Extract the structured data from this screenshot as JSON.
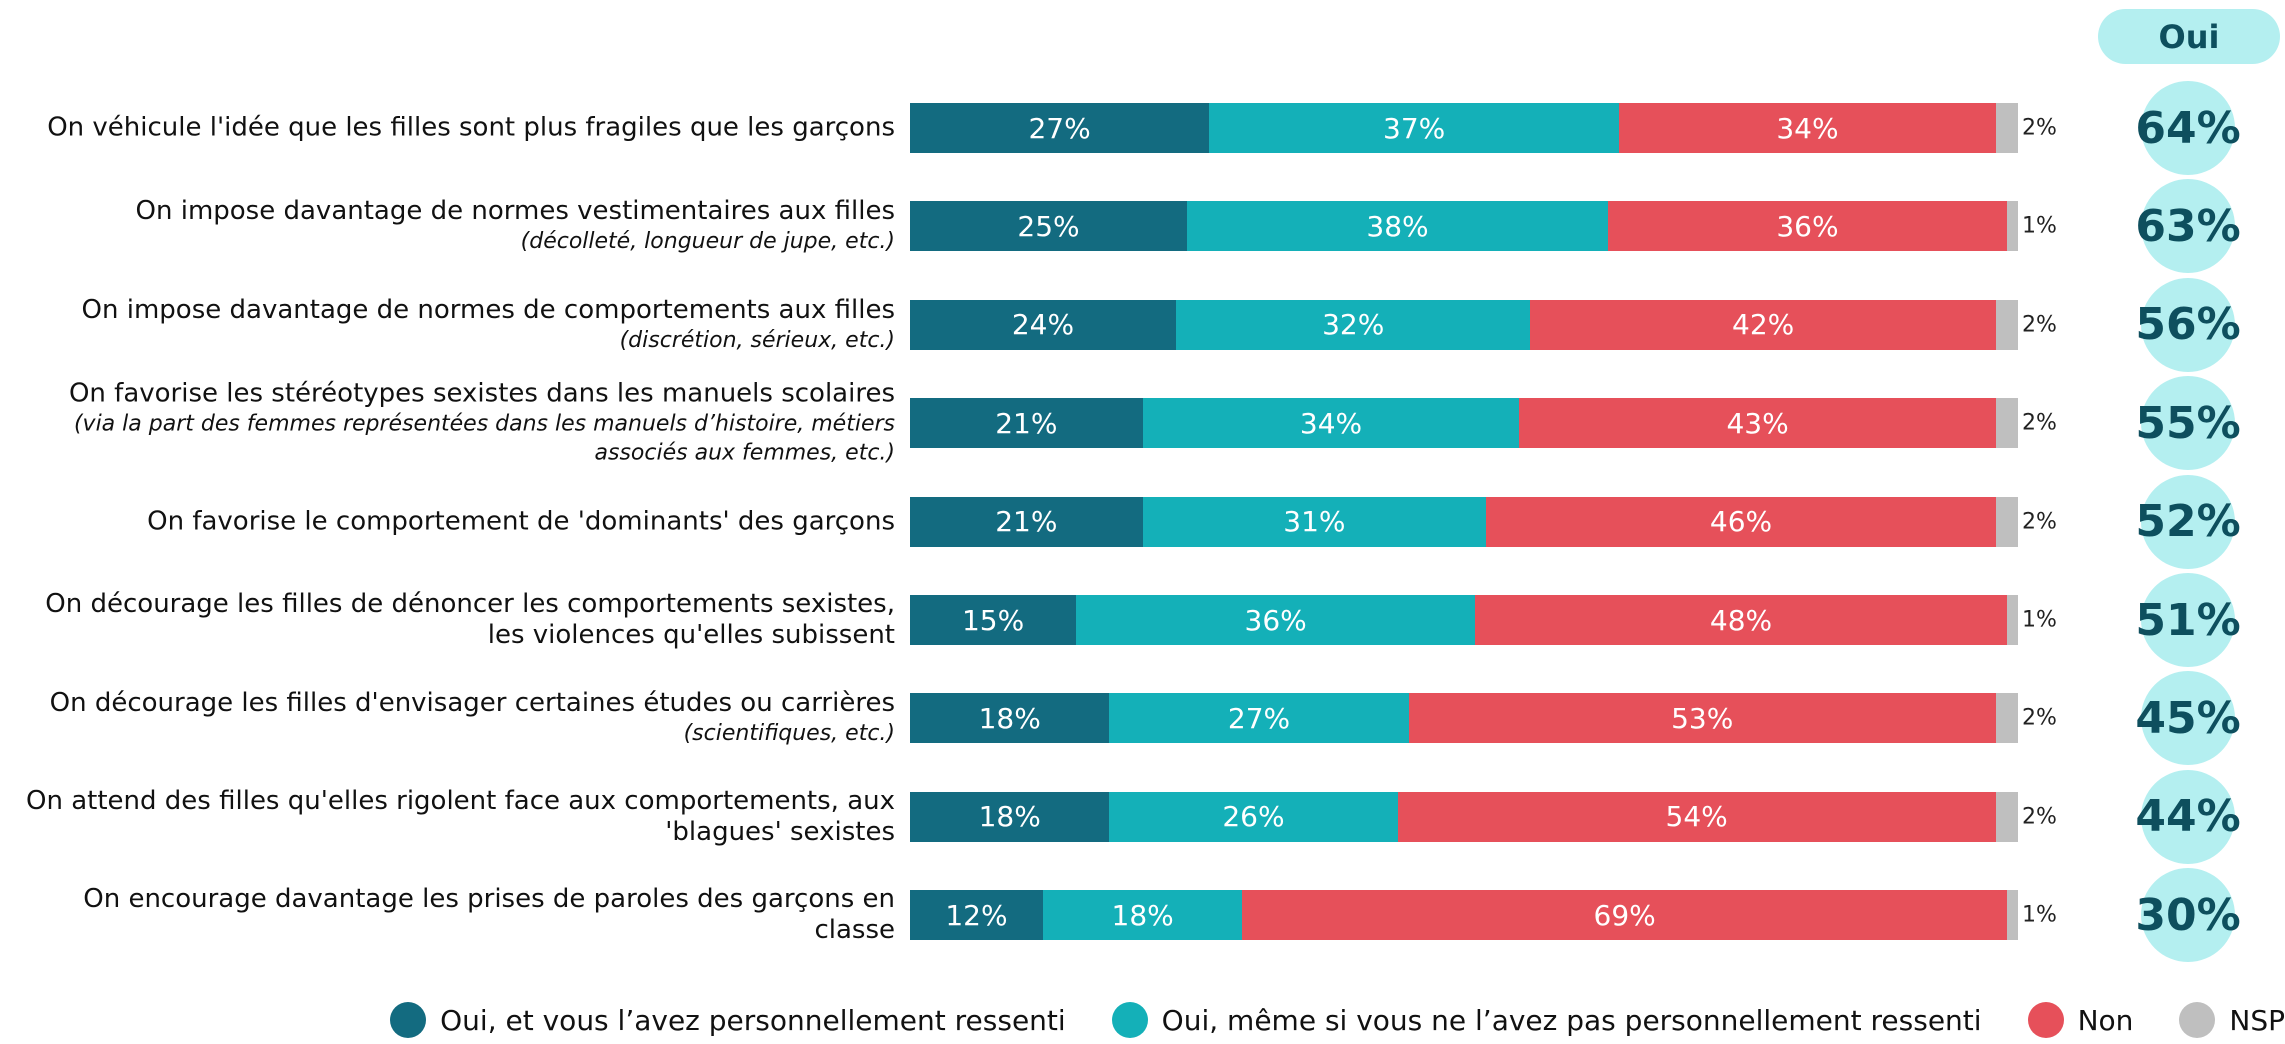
{
  "chart_data": {
    "type": "stacked_bar_horizontal",
    "categories": [
      "On véhicule l'idée que les filles sont plus fragiles que les garçons",
      "On impose davantage de normes vestimentaires aux filles",
      "On impose davantage de normes de comportements aux filles",
      "On favorise les stéréotypes sexistes dans les manuels scolaires",
      "On favorise le comportement de 'dominants' des garçons",
      "On décourage les filles de dénoncer les comportements sexistes, les violences qu'elles subissent",
      "On décourage les filles d'envisager certaines études ou carrières",
      "On attend des filles qu'elles rigolent face aux comportements, aux 'blagues' sexistes",
      "On encourage davantage les prises de paroles des garçons en classe"
    ],
    "notes": [
      null,
      "(décolleté, longueur de jupe, etc.)",
      "(discrétion, sérieux, etc.)",
      "(via la part des femmes représentées dans les manuels d’histoire, métiers associés aux femmes, etc.)",
      null,
      null,
      "(scientifiques, etc.)",
      null,
      null
    ],
    "series": [
      {
        "name": "Oui, et vous l’avez personnellement ressenti",
        "color": "#136b80",
        "label_color": "#ffffff",
        "values": [
          27,
          25,
          24,
          21,
          21,
          15,
          18,
          18,
          12
        ],
        "value_labels": [
          "27%",
          "25%",
          "24%",
          "21%",
          "21%",
          "15%",
          "18%",
          "18%",
          "12%"
        ]
      },
      {
        "name": "Oui, même si vous ne l’avez pas personnellement ressenti",
        "color": "#14b0b8",
        "label_color": "#ffffff",
        "values": [
          37,
          38,
          32,
          34,
          31,
          36,
          27,
          26,
          18
        ],
        "value_labels": [
          "37%",
          "38%",
          "32%",
          "34%",
          "31%",
          "36%",
          "27%",
          "26%",
          "18%"
        ]
      },
      {
        "name": "Non",
        "color": "#e6505a",
        "label_color": "#ffffff",
        "values": [
          34,
          36,
          42,
          43,
          46,
          48,
          53,
          54,
          69
        ],
        "value_labels": [
          "34%",
          "36%",
          "42%",
          "43%",
          "46%",
          "48%",
          "53%",
          "54%",
          "69%"
        ]
      },
      {
        "name": "NSP",
        "color": "#bfbfbf",
        "label_color": "#222222",
        "values": [
          2,
          1,
          2,
          2,
          2,
          1,
          2,
          2,
          1
        ],
        "value_labels": [
          "2%",
          "1%",
          "2%",
          "2%",
          "2%",
          "1%",
          "2%",
          "2%",
          "1%"
        ]
      }
    ],
    "total": {
      "name": "Oui",
      "color": "#b4eff0",
      "text_color": "#0e4f5e",
      "values": [
        64,
        63,
        56,
        55,
        52,
        51,
        45,
        44,
        30
      ],
      "value_labels": [
        "64%",
        "63%",
        "56%",
        "55%",
        "52%",
        "51%",
        "45%",
        "44%",
        "30%"
      ]
    },
    "legend": "bottom"
  }
}
